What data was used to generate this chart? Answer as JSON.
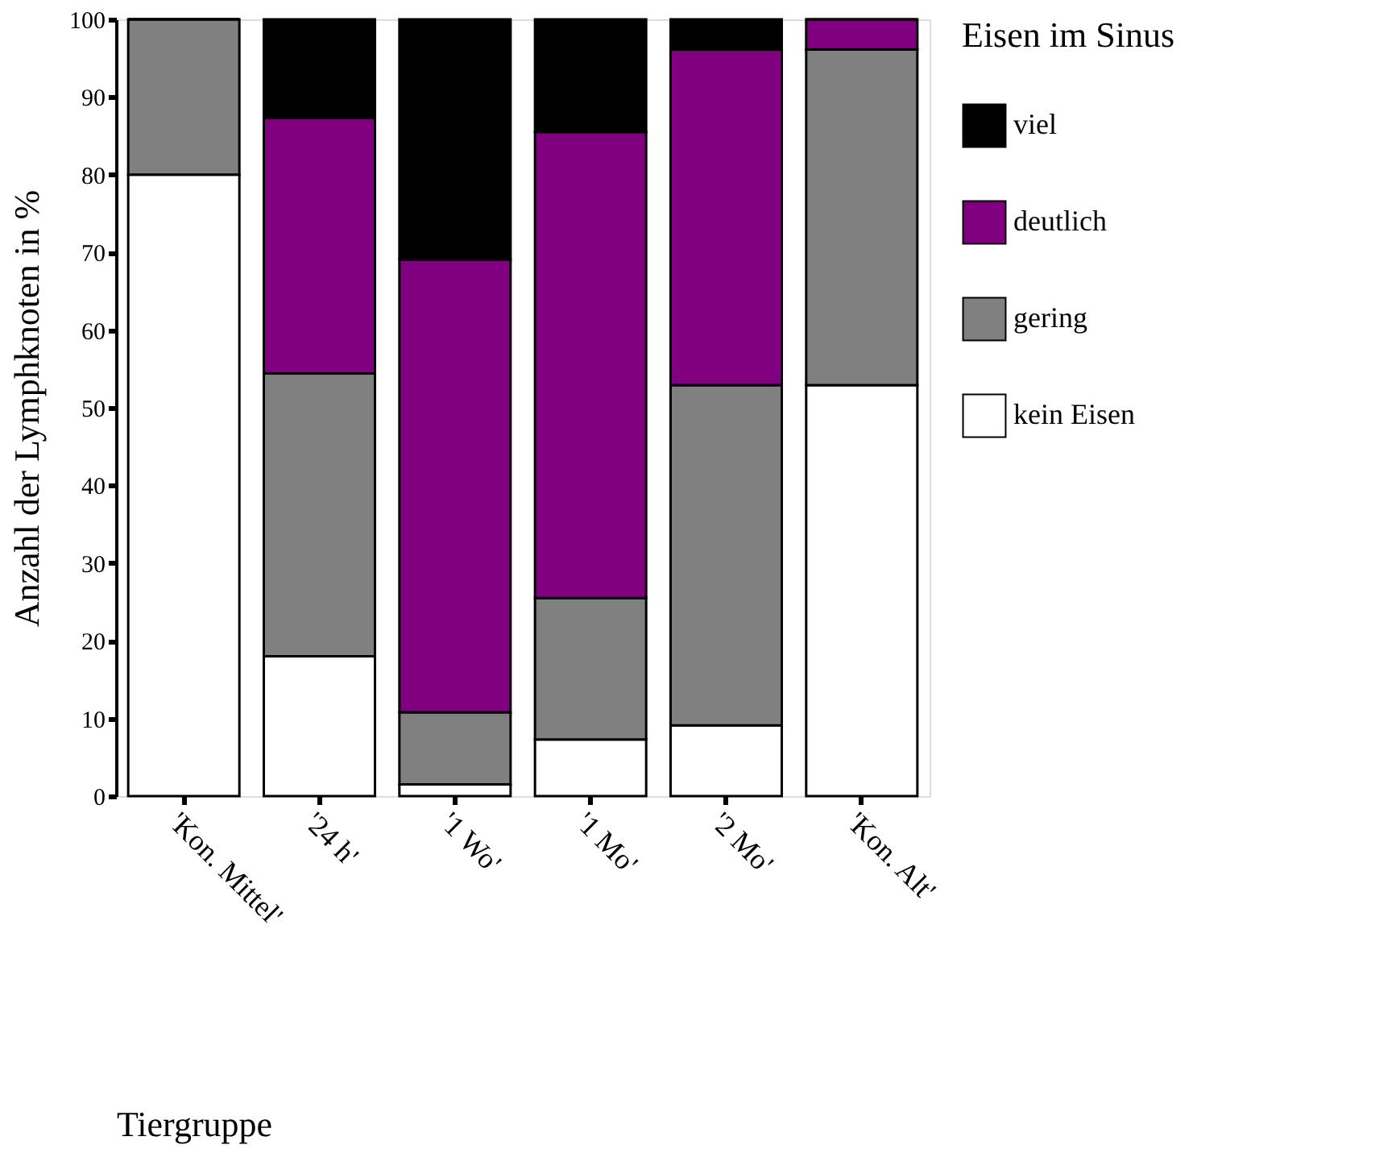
{
  "chart_data": {
    "type": "bar",
    "stacked": true,
    "xlabel": "Tiergruppe",
    "ylabel": "Anzahl der Lymphknoten in %",
    "legend_title": "Eisen im Sinus",
    "legend": "right",
    "grid": false,
    "categories": [
      "'Kon. Mittel'",
      "'24 h'",
      "'1 Wo'",
      "'1 Mo'",
      "'2 Mo'",
      "'Kon. Alt'"
    ],
    "ylim": [
      0,
      100
    ],
    "yticks": [
      0,
      10,
      20,
      30,
      40,
      50,
      60,
      70,
      80,
      90,
      100
    ],
    "series": [
      {
        "name": "kein Eisen",
        "color": "#ffffff",
        "values": [
          80,
          18,
          1.5,
          7.3,
          9.1,
          52.9
        ]
      },
      {
        "name": "gering",
        "color": "#808080",
        "values": [
          20,
          36.4,
          9.3,
          18.2,
          43.8,
          43.2
        ]
      },
      {
        "name": "deutlich",
        "color": "#800080",
        "values": [
          0,
          32.9,
          58.3,
          60,
          43.2,
          3.9
        ]
      },
      {
        "name": "viel",
        "color": "#000000",
        "values": [
          0,
          12.7,
          30.9,
          14.5,
          3.9,
          0
        ]
      }
    ]
  }
}
